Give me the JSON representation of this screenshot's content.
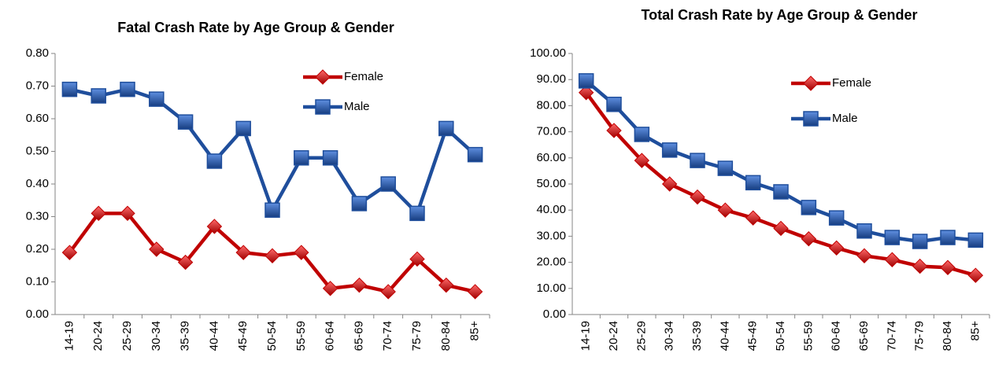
{
  "chart_data": [
    {
      "type": "line",
      "title": "Fatal Crash Rate by Age Group & Gender",
      "categories": [
        "14-19",
        "20-24",
        "25-29",
        "30-34",
        "35-39",
        "40-44",
        "45-49",
        "50-54",
        "55-59",
        "60-64",
        "65-69",
        "70-74",
        "75-79",
        "80-84",
        "85+"
      ],
      "series": [
        {
          "name": "Female",
          "color": "#c00000",
          "marker": "diamond",
          "values": [
            0.19,
            0.31,
            0.31,
            0.2,
            0.16,
            0.27,
            0.19,
            0.18,
            0.19,
            0.08,
            0.09,
            0.07,
            0.17,
            0.09,
            0.07
          ]
        },
        {
          "name": "Male",
          "color": "#1f4e9c",
          "marker": "square",
          "values": [
            0.69,
            0.67,
            0.69,
            0.66,
            0.59,
            0.47,
            0.57,
            0.32,
            0.48,
            0.48,
            0.34,
            0.4,
            0.31,
            0.57,
            0.49
          ]
        }
      ],
      "ylim": [
        0,
        0.8
      ],
      "yticks": [
        {
          "value": 0,
          "label": "0.00"
        },
        {
          "value": 0.1,
          "label": "0.10"
        },
        {
          "value": 0.2,
          "label": "0.20"
        },
        {
          "value": 0.3,
          "label": "0.30"
        },
        {
          "value": 0.4,
          "label": "0.40"
        },
        {
          "value": 0.5,
          "label": "0.50"
        },
        {
          "value": 0.6,
          "label": "0.60"
        },
        {
          "value": 0.7,
          "label": "0.70"
        },
        {
          "value": 0.8,
          "label": "0.80"
        }
      ]
    },
    {
      "type": "line",
      "title": "Total Crash Rate by Age Group & Gender",
      "categories": [
        "14-19",
        "20-24",
        "25-29",
        "30-34",
        "35-39",
        "40-44",
        "45-49",
        "50-54",
        "55-59",
        "60-64",
        "65-69",
        "70-74",
        "75-79",
        "80-84",
        "85+"
      ],
      "series": [
        {
          "name": "Female",
          "color": "#c00000",
          "marker": "diamond",
          "values": [
            85,
            70.5,
            59,
            50,
            45,
            40,
            37,
            33,
            29,
            25.5,
            22.5,
            21,
            18.5,
            18,
            15
          ]
        },
        {
          "name": "Male",
          "color": "#1f4e9c",
          "marker": "square",
          "values": [
            89.5,
            80.5,
            69,
            63,
            59,
            56,
            50.5,
            47,
            41,
            37,
            32,
            29.5,
            28,
            29.5,
            28.5
          ]
        }
      ],
      "ylim": [
        0,
        100
      ],
      "yticks": [
        {
          "value": 0,
          "label": "0.00"
        },
        {
          "value": 10,
          "label": "10.00"
        },
        {
          "value": 20,
          "label": "20.00"
        },
        {
          "value": 30,
          "label": "30.00"
        },
        {
          "value": 40,
          "label": "40.00"
        },
        {
          "value": 50,
          "label": "50.00"
        },
        {
          "value": 60,
          "label": "60.00"
        },
        {
          "value": 70,
          "label": "70.00"
        },
        {
          "value": 80,
          "label": "80.00"
        },
        {
          "value": 90,
          "label": "90.00"
        },
        {
          "value": 100,
          "label": "100.00"
        }
      ]
    }
  ]
}
